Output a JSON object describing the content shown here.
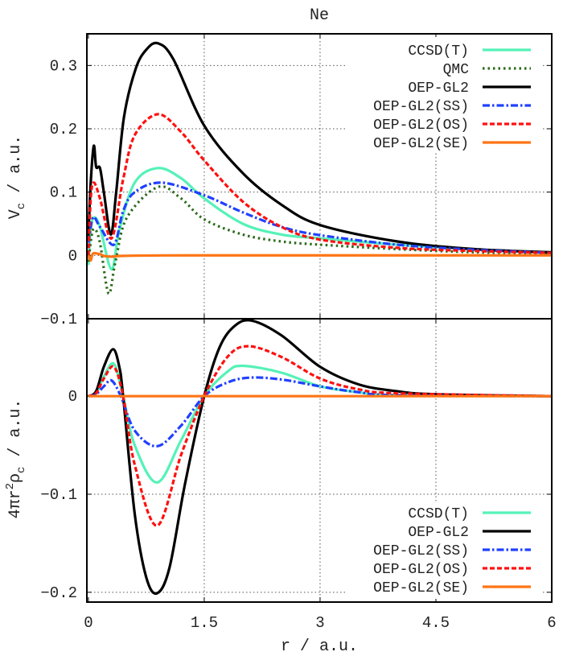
{
  "chart_data": [
    {
      "type": "line",
      "title": "Ne",
      "xlabel": "r / a.u.",
      "ylabel": "V_c / a.u.",
      "xlim": [
        -0.02,
        6
      ],
      "ylim": [
        -0.1,
        0.35
      ],
      "x_ticks": [
        "0",
        "1.5",
        "3",
        "4.5",
        "6"
      ],
      "y_ticks": [
        {
          "v": 0.3,
          "label": "0.3"
        },
        {
          "v": 0.2,
          "label": "0.2"
        },
        {
          "v": 0.1,
          "label": "0.1"
        },
        {
          "v": 0,
          "label": "0"
        },
        {
          "v": -0.1,
          "label": "-0.1"
        }
      ],
      "grid": true,
      "legend_position": "top-right",
      "series": [
        {
          "name": "CCSD(T)",
          "color": "#55f2b8",
          "style": "solid",
          "points": [
            [
              0,
              -0.015
            ],
            [
              0.03,
              0.04
            ],
            [
              0.07,
              0.06
            ],
            [
              0.15,
              0.045
            ],
            [
              0.3,
              -0.022
            ],
            [
              0.4,
              0.04
            ],
            [
              0.6,
              0.115
            ],
            [
              0.9,
              0.138
            ],
            [
              1.2,
              0.122
            ],
            [
              1.5,
              0.09
            ],
            [
              2,
              0.05
            ],
            [
              2.5,
              0.033
            ],
            [
              3,
              0.027
            ],
            [
              4,
              0.017
            ],
            [
              5,
              0.009
            ],
            [
              6,
              0.004
            ]
          ]
        },
        {
          "name": "QMC",
          "color": "#2a6b1a",
          "style": "dotted",
          "points": [
            [
              0,
              -0.01
            ],
            [
              0.04,
              0.03
            ],
            [
              0.08,
              0.042
            ],
            [
              0.15,
              0.02
            ],
            [
              0.26,
              -0.06
            ],
            [
              0.35,
              -0.01
            ],
            [
              0.5,
              0.06
            ],
            [
              0.9,
              0.108
            ],
            [
              1.2,
              0.09
            ],
            [
              1.5,
              0.057
            ],
            [
              2,
              0.033
            ],
            [
              2.5,
              0.022
            ],
            [
              3,
              0.017
            ],
            [
              4,
              0.01
            ],
            [
              5,
              0.005
            ],
            [
              6,
              0.003
            ]
          ]
        },
        {
          "name": "OEP-GL2",
          "color": "#000000",
          "style": "solid",
          "points": [
            [
              0,
              0.03
            ],
            [
              0.03,
              0.115
            ],
            [
              0.07,
              0.173
            ],
            [
              0.1,
              0.14
            ],
            [
              0.15,
              0.138
            ],
            [
              0.2,
              0.1
            ],
            [
              0.29,
              0.033
            ],
            [
              0.36,
              0.1
            ],
            [
              0.46,
              0.218
            ],
            [
              0.61,
              0.294
            ],
            [
              0.75,
              0.325
            ],
            [
              0.9,
              0.335
            ],
            [
              1.1,
              0.31
            ],
            [
              1.5,
              0.205
            ],
            [
              2,
              0.13
            ],
            [
              2.5,
              0.08
            ],
            [
              3,
              0.048
            ],
            [
              4,
              0.022
            ],
            [
              5,
              0.01
            ],
            [
              6,
              0.005
            ]
          ]
        },
        {
          "name": "OEP-GL2(SS)",
          "color": "#2040ff",
          "style": "dashdot",
          "points": [
            [
              0,
              0.02
            ],
            [
              0.06,
              0.06
            ],
            [
              0.15,
              0.045
            ],
            [
              0.33,
              0.017
            ],
            [
              0.45,
              0.07
            ],
            [
              0.6,
              0.1
            ],
            [
              0.95,
              0.115
            ],
            [
              1.5,
              0.095
            ],
            [
              2,
              0.068
            ],
            [
              2.5,
              0.045
            ],
            [
              3,
              0.032
            ],
            [
              4,
              0.017
            ],
            [
              5,
              0.009
            ],
            [
              6,
              0.004
            ]
          ]
        },
        {
          "name": "OEP-GL2(OS)",
          "color": "#ff1010",
          "style": "dashed",
          "points": [
            [
              0,
              0
            ],
            [
              0.03,
              0.09
            ],
            [
              0.07,
              0.115
            ],
            [
              0.15,
              0.09
            ],
            [
              0.3,
              0.027
            ],
            [
              0.45,
              0.12
            ],
            [
              0.6,
              0.19
            ],
            [
              0.9,
              0.223
            ],
            [
              1.2,
              0.195
            ],
            [
              1.5,
              0.15
            ],
            [
              2,
              0.085
            ],
            [
              2.5,
              0.045
            ],
            [
              3,
              0.025
            ],
            [
              4,
              0.012
            ],
            [
              5,
              0.007
            ],
            [
              6,
              0.004
            ]
          ]
        },
        {
          "name": "OEP-GL2(SE)",
          "color": "#ff7515",
          "style": "solid",
          "points": [
            [
              0,
              0
            ],
            [
              0.03,
              -0.008
            ],
            [
              0.06,
              0.003
            ],
            [
              0.15,
              0.002
            ],
            [
              0.3,
              -0.002
            ],
            [
              1,
              0
            ],
            [
              6,
              0
            ]
          ]
        }
      ]
    },
    {
      "type": "line",
      "xlabel": "r / a.u.",
      "ylabel": "4πr²ρ_c / a.u.",
      "xlim": [
        -0.02,
        6
      ],
      "ylim": [
        -0.21,
        0.079
      ],
      "x_ticks": [
        "0",
        "1.5",
        "3",
        "4.5",
        "6"
      ],
      "y_ticks": [
        {
          "v": 0,
          "label": "0"
        },
        {
          "v": -0.1,
          "label": "-0.1"
        },
        {
          "v": -0.2,
          "label": "-0.2"
        }
      ],
      "grid": true,
      "legend_position": "bottom-right",
      "series": [
        {
          "name": "CCSD(T)",
          "color": "#55f2b8",
          "style": "solid",
          "points": [
            [
              0,
              0
            ],
            [
              0.1,
              0.003
            ],
            [
              0.2,
              0.02
            ],
            [
              0.33,
              0.033
            ],
            [
              0.45,
              0
            ],
            [
              0.6,
              -0.05
            ],
            [
              0.89,
              -0.088
            ],
            [
              1.2,
              -0.045
            ],
            [
              1.5,
              0
            ],
            [
              1.8,
              0.025
            ],
            [
              2,
              0.031
            ],
            [
              2.5,
              0.024
            ],
            [
              3,
              0.01
            ],
            [
              3.5,
              0.004
            ],
            [
              4,
              0.001
            ],
            [
              6,
              0
            ]
          ]
        },
        {
          "name": "OEP-GL2",
          "color": "#000000",
          "style": "solid",
          "points": [
            [
              0,
              0
            ],
            [
              0.1,
              0.005
            ],
            [
              0.2,
              0.03
            ],
            [
              0.32,
              0.048
            ],
            [
              0.4,
              0.03
            ],
            [
              0.45,
              0
            ],
            [
              0.6,
              -0.12
            ],
            [
              0.75,
              -0.185
            ],
            [
              0.89,
              -0.201
            ],
            [
              1.05,
              -0.175
            ],
            [
              1.25,
              -0.09
            ],
            [
              1.5,
              0
            ],
            [
              1.7,
              0.05
            ],
            [
              1.9,
              0.072
            ],
            [
              2.12,
              0.077
            ],
            [
              2.5,
              0.062
            ],
            [
              3,
              0.03
            ],
            [
              3.5,
              0.012
            ],
            [
              4,
              0.005
            ],
            [
              4.5,
              0.002
            ],
            [
              6,
              0
            ]
          ]
        },
        {
          "name": "OEP-GL2(SS)",
          "color": "#2040ff",
          "style": "dashdot",
          "points": [
            [
              0,
              0
            ],
            [
              0.1,
              0.002
            ],
            [
              0.2,
              0.01
            ],
            [
              0.3,
              0.016
            ],
            [
              0.42,
              0
            ],
            [
              0.6,
              -0.035
            ],
            [
              0.89,
              -0.051
            ],
            [
              1.2,
              -0.03
            ],
            [
              1.5,
              0
            ],
            [
              1.8,
              0.014
            ],
            [
              2.1,
              0.019
            ],
            [
              2.5,
              0.017
            ],
            [
              3,
              0.01
            ],
            [
              3.5,
              0.004
            ],
            [
              4,
              0.001
            ],
            [
              6,
              0
            ]
          ]
        },
        {
          "name": "OEP-GL2(OS)",
          "color": "#ff1010",
          "style": "dashed",
          "points": [
            [
              0,
              0
            ],
            [
              0.1,
              0.003
            ],
            [
              0.2,
              0.018
            ],
            [
              0.33,
              0.03
            ],
            [
              0.45,
              0
            ],
            [
              0.6,
              -0.07
            ],
            [
              0.89,
              -0.132
            ],
            [
              1.2,
              -0.06
            ],
            [
              1.5,
              0
            ],
            [
              1.8,
              0.04
            ],
            [
              2.07,
              0.051
            ],
            [
              2.5,
              0.04
            ],
            [
              3,
              0.018
            ],
            [
              3.5,
              0.007
            ],
            [
              4,
              0.003
            ],
            [
              6,
              0
            ]
          ]
        },
        {
          "name": "OEP-GL2(SE)",
          "color": "#ff7515",
          "style": "solid",
          "points": [
            [
              0,
              0
            ],
            [
              6,
              0
            ]
          ]
        }
      ]
    }
  ]
}
